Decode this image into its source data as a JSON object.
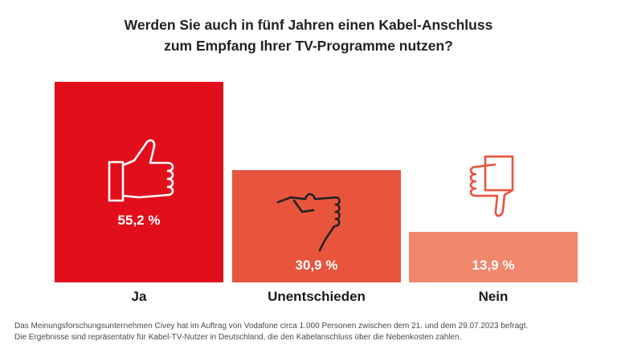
{
  "title": {
    "line1": "Werden Sie auch in fünf Jahren einen Kabel-Anschluss",
    "line2": "zum Empfang Ihrer TV-Programme nutzen?"
  },
  "chart_data": {
    "type": "bar",
    "categories": [
      "Ja",
      "Unentschieden",
      "Nein"
    ],
    "values": [
      55.2,
      30.9,
      13.9
    ],
    "value_labels": [
      "55,2 %",
      "30,9 %",
      "13,9 %"
    ],
    "icons": [
      "thumbs-up-icon",
      "thumbs-sideways-icon",
      "thumbs-down-icon"
    ],
    "colors": [
      "#e20e1b",
      "#e8543c",
      "#f0866a"
    ],
    "ylim": [
      0,
      55.2
    ],
    "grid": false,
    "title": "Werden Sie auch in fünf Jahren einen Kabel-Anschluss zum Empfang Ihrer TV-Programme nutzen?",
    "xlabel": "",
    "ylabel": ""
  },
  "footnote": {
    "line1": "Das Meinungsforschungsunternehmen Civey hat im Auftrag von Vodafone circa 1.000 Personen zwischen dem 21. und dem 29.07.2023 befragt.",
    "line2": "Die Ergebnisse sind repräsentativ für Kabel-TV-Nutzer in Deutschland, die den Kabelanschluss über die Nebenkosten zahlen."
  }
}
